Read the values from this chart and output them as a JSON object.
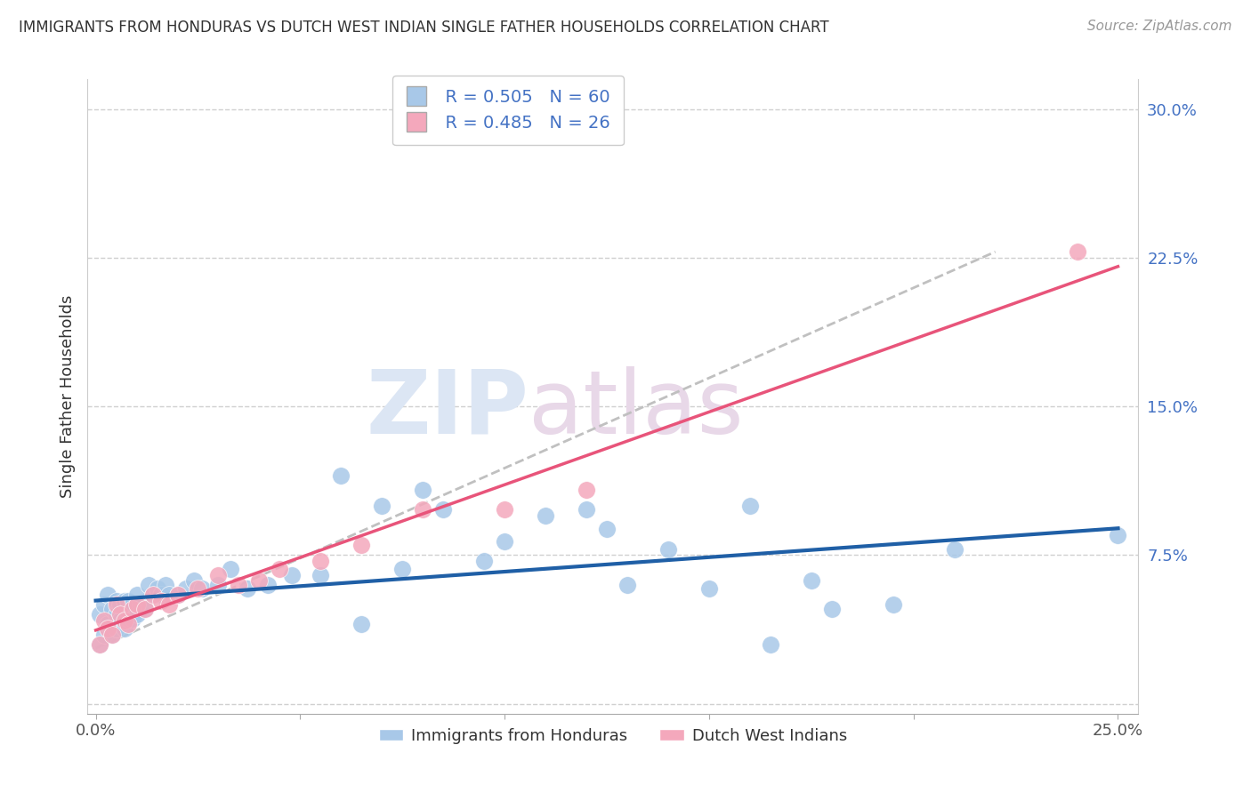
{
  "title": "IMMIGRANTS FROM HONDURAS VS DUTCH WEST INDIAN SINGLE FATHER HOUSEHOLDS CORRELATION CHART",
  "source": "Source: ZipAtlas.com",
  "ylabel": "Single Father Households",
  "legend_label1": "Immigrants from Honduras",
  "legend_label2": "Dutch West Indians",
  "legend_r1": "R = 0.505",
  "legend_n1": "N = 60",
  "legend_r2": "R = 0.485",
  "legend_n2": "N = 26",
  "xlim": [
    -0.002,
    0.255
  ],
  "ylim": [
    -0.005,
    0.315
  ],
  "xticks": [
    0.0,
    0.05,
    0.1,
    0.15,
    0.2,
    0.25
  ],
  "xticklabels": [
    "0.0%",
    "",
    "",
    "",
    "",
    "25.0%"
  ],
  "yticks": [
    0.0,
    0.075,
    0.15,
    0.225,
    0.3
  ],
  "yticklabels": [
    "",
    "7.5%",
    "15.0%",
    "22.5%",
    "30.0%"
  ],
  "blue_color": "#a8c8e8",
  "pink_color": "#f4a8bc",
  "blue_line_color": "#1f5fa6",
  "pink_line_color": "#e8547a",
  "gray_line_color": "#c0c0c0",
  "watermark_zip": "ZIP",
  "watermark_atlas": "atlas",
  "blue_scatter_x": [
    0.001,
    0.001,
    0.002,
    0.002,
    0.003,
    0.003,
    0.004,
    0.004,
    0.005,
    0.005,
    0.005,
    0.006,
    0.006,
    0.007,
    0.007,
    0.008,
    0.008,
    0.009,
    0.009,
    0.01,
    0.01,
    0.011,
    0.012,
    0.013,
    0.014,
    0.015,
    0.016,
    0.017,
    0.018,
    0.02,
    0.022,
    0.024,
    0.026,
    0.03,
    0.033,
    0.037,
    0.042,
    0.048,
    0.055,
    0.065,
    0.075,
    0.085,
    0.095,
    0.11,
    0.125,
    0.14,
    0.16,
    0.175,
    0.195,
    0.21,
    0.06,
    0.07,
    0.08,
    0.1,
    0.12,
    0.13,
    0.15,
    0.165,
    0.18,
    0.25
  ],
  "blue_scatter_y": [
    0.03,
    0.045,
    0.035,
    0.05,
    0.04,
    0.055,
    0.035,
    0.048,
    0.038,
    0.045,
    0.052,
    0.042,
    0.05,
    0.038,
    0.052,
    0.043,
    0.052,
    0.043,
    0.05,
    0.045,
    0.055,
    0.05,
    0.048,
    0.06,
    0.055,
    0.058,
    0.055,
    0.06,
    0.055,
    0.055,
    0.058,
    0.062,
    0.058,
    0.06,
    0.068,
    0.058,
    0.06,
    0.065,
    0.065,
    0.04,
    0.068,
    0.098,
    0.072,
    0.095,
    0.088,
    0.078,
    0.1,
    0.062,
    0.05,
    0.078,
    0.115,
    0.1,
    0.108,
    0.082,
    0.098,
    0.06,
    0.058,
    0.03,
    0.048,
    0.085
  ],
  "pink_scatter_x": [
    0.001,
    0.002,
    0.003,
    0.004,
    0.005,
    0.006,
    0.007,
    0.008,
    0.009,
    0.01,
    0.012,
    0.014,
    0.016,
    0.018,
    0.02,
    0.025,
    0.03,
    0.035,
    0.04,
    0.045,
    0.055,
    0.065,
    0.08,
    0.1,
    0.12,
    0.24
  ],
  "pink_scatter_y": [
    0.03,
    0.042,
    0.038,
    0.035,
    0.05,
    0.045,
    0.042,
    0.04,
    0.048,
    0.05,
    0.048,
    0.055,
    0.052,
    0.05,
    0.055,
    0.058,
    0.065,
    0.06,
    0.062,
    0.068,
    0.072,
    0.08,
    0.098,
    0.098,
    0.108,
    0.228
  ]
}
